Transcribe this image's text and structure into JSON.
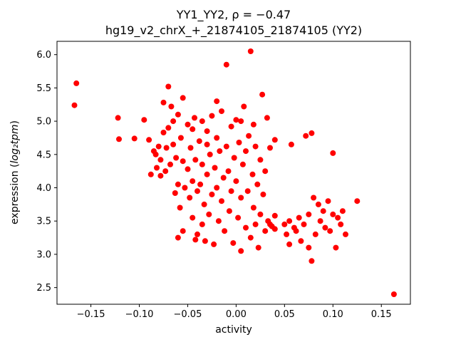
{
  "chart_data": {
    "type": "scatter",
    "title": "YY1_YY2, ρ = −0.47",
    "subtitle": "hg19_v2_chrX_+_21874105_21874105 (YY2)",
    "xlabel": "activity",
    "ylabel_prefix": "expression (",
    "ylabel_math": "log₂tpm",
    "ylabel_suffix": ")",
    "marker_color": "#ff0000",
    "background_color": "#ffffff",
    "grid": false,
    "legend": false,
    "xlim": [
      -0.185,
      0.18
    ],
    "ylim": [
      2.25,
      6.2
    ],
    "xticks": [
      -0.15,
      -0.1,
      -0.05,
      0.0,
      0.05,
      0.1,
      0.15
    ],
    "xtick_labels": [
      "−0.15",
      "−0.10",
      "−0.05",
      "0.00",
      "0.05",
      "0.10",
      "0.15"
    ],
    "yticks": [
      2.5,
      3.0,
      3.5,
      4.0,
      4.5,
      5.0,
      5.5,
      6.0
    ],
    "ytick_labels": [
      "2.5",
      "3.0",
      "3.5",
      "4.0",
      "4.5",
      "5.0",
      "5.5",
      "6.0"
    ],
    "points": [
      [
        -0.165,
        5.57
      ],
      [
        -0.167,
        5.24
      ],
      [
        -0.122,
        5.05
      ],
      [
        -0.121,
        4.73
      ],
      [
        -0.105,
        4.74
      ],
      [
        -0.095,
        5.02
      ],
      [
        -0.09,
        4.72
      ],
      [
        -0.088,
        4.2
      ],
      [
        -0.085,
        4.55
      ],
      [
        -0.083,
        4.5
      ],
      [
        -0.082,
        4.3
      ],
      [
        -0.08,
        4.62
      ],
      [
        -0.078,
        4.18
      ],
      [
        -0.078,
        4.42
      ],
      [
        -0.075,
        5.28
      ],
      [
        -0.075,
        4.83
      ],
      [
        -0.073,
        4.25
      ],
      [
        -0.072,
        4.6
      ],
      [
        -0.07,
        5.52
      ],
      [
        -0.07,
        4.9
      ],
      [
        -0.068,
        4.35
      ],
      [
        -0.067,
        5.22
      ],
      [
        -0.065,
        5.0
      ],
      [
        -0.065,
        4.65
      ],
      [
        -0.063,
        3.92
      ],
      [
        -0.062,
        4.45
      ],
      [
        -0.06,
        5.1
      ],
      [
        -0.06,
        4.05
      ],
      [
        -0.06,
        3.25
      ],
      [
        -0.058,
        3.7
      ],
      [
        -0.057,
        4.75
      ],
      [
        -0.055,
        5.35
      ],
      [
        -0.055,
        4.4
      ],
      [
        -0.055,
        3.35
      ],
      [
        -0.053,
        4.0
      ],
      [
        -0.05,
        4.95
      ],
      [
        -0.05,
        4.28
      ],
      [
        -0.048,
        3.85
      ],
      [
        -0.047,
        4.6
      ],
      [
        -0.045,
        4.88
      ],
      [
        -0.045,
        4.1
      ],
      [
        -0.045,
        3.55
      ],
      [
        -0.043,
        5.05
      ],
      [
        -0.042,
        4.42
      ],
      [
        -0.042,
        3.22
      ],
      [
        -0.04,
        3.95
      ],
      [
        -0.04,
        3.3
      ],
      [
        -0.038,
        4.7
      ],
      [
        -0.037,
        4.05
      ],
      [
        -0.035,
        5.0
      ],
      [
        -0.035,
        4.35
      ],
      [
        -0.035,
        3.45
      ],
      [
        -0.033,
        3.75
      ],
      [
        -0.032,
        3.2
      ],
      [
        -0.03,
        4.85
      ],
      [
        -0.03,
        4.65
      ],
      [
        -0.03,
        4.2
      ],
      [
        -0.028,
        3.6
      ],
      [
        -0.027,
        4.5
      ],
      [
        -0.025,
        5.08
      ],
      [
        -0.025,
        3.9
      ],
      [
        -0.023,
        3.15
      ],
      [
        -0.022,
        4.3
      ],
      [
        -0.02,
        5.3
      ],
      [
        -0.02,
        4.75
      ],
      [
        -0.02,
        4.0
      ],
      [
        -0.018,
        3.5
      ],
      [
        -0.017,
        4.55
      ],
      [
        -0.015,
        5.15
      ],
      [
        -0.015,
        3.8
      ],
      [
        -0.013,
        4.15
      ],
      [
        -0.012,
        3.35
      ],
      [
        -0.01,
        5.85
      ],
      [
        -0.01,
        4.62
      ],
      [
        -0.008,
        4.25
      ],
      [
        -0.007,
        3.65
      ],
      [
        -0.005,
        4.92
      ],
      [
        -0.005,
        3.95
      ],
      [
        -0.003,
        3.17
      ],
      [
        -0.002,
        4.45
      ],
      [
        0.0,
        5.02
      ],
      [
        0.0,
        4.1
      ],
      [
        0.002,
        3.55
      ],
      [
        0.003,
        4.68
      ],
      [
        0.005,
        5.0
      ],
      [
        0.005,
        3.85
      ],
      [
        0.005,
        3.05
      ],
      [
        0.007,
        4.35
      ],
      [
        0.008,
        5.22
      ],
      [
        0.01,
        4.55
      ],
      [
        0.01,
        3.4
      ],
      [
        0.012,
        3.95
      ],
      [
        0.013,
        4.78
      ],
      [
        0.015,
        6.05
      ],
      [
        0.015,
        3.25
      ],
      [
        0.017,
        4.2
      ],
      [
        0.018,
        4.95
      ],
      [
        0.018,
        3.7
      ],
      [
        0.02,
        4.62
      ],
      [
        0.02,
        3.45
      ],
      [
        0.022,
        4.05
      ],
      [
        0.023,
        3.1
      ],
      [
        0.025,
        4.42
      ],
      [
        0.025,
        3.6
      ],
      [
        0.027,
        5.4
      ],
      [
        0.028,
        3.9
      ],
      [
        0.03,
        4.25
      ],
      [
        0.03,
        3.35
      ],
      [
        0.032,
        5.05
      ],
      [
        0.033,
        3.5
      ],
      [
        0.035,
        4.6
      ],
      [
        0.035,
        3.45
      ],
      [
        0.037,
        3.42
      ],
      [
        0.04,
        4.72
      ],
      [
        0.04,
        3.38
      ],
      [
        0.04,
        3.58
      ],
      [
        0.05,
        3.45
      ],
      [
        0.052,
        3.3
      ],
      [
        0.055,
        3.5
      ],
      [
        0.055,
        3.15
      ],
      [
        0.057,
        4.65
      ],
      [
        0.06,
        3.4
      ],
      [
        0.062,
        3.35
      ],
      [
        0.065,
        3.55
      ],
      [
        0.067,
        3.2
      ],
      [
        0.07,
        3.45
      ],
      [
        0.072,
        4.78
      ],
      [
        0.075,
        3.6
      ],
      [
        0.075,
        3.1
      ],
      [
        0.078,
        2.9
      ],
      [
        0.078,
        4.82
      ],
      [
        0.08,
        3.85
      ],
      [
        0.082,
        3.3
      ],
      [
        0.085,
        3.75
      ],
      [
        0.087,
        3.5
      ],
      [
        0.09,
        3.65
      ],
      [
        0.092,
        3.4
      ],
      [
        0.095,
        3.8
      ],
      [
        0.097,
        3.35
      ],
      [
        0.1,
        4.52
      ],
      [
        0.1,
        3.6
      ],
      [
        0.103,
        3.1
      ],
      [
        0.105,
        3.55
      ],
      [
        0.108,
        3.45
      ],
      [
        0.11,
        3.65
      ],
      [
        0.113,
        3.3
      ],
      [
        0.125,
        3.8
      ],
      [
        0.163,
        2.4
      ]
    ]
  }
}
